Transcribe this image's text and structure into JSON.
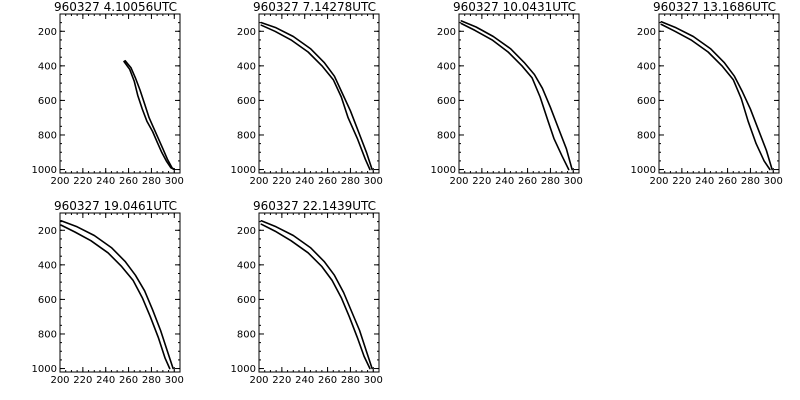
{
  "chart_data": [
    {
      "type": "line",
      "title": "960327   4.10056UTC",
      "xlim": [
        200,
        305
      ],
      "ylim": [
        100,
        1020
      ],
      "y_inverted": true,
      "xticks": [
        200,
        220,
        240,
        260,
        280,
        300
      ],
      "yticks": [
        200,
        400,
        600,
        800,
        1000
      ],
      "series": [
        {
          "x": [
            257,
            262,
            266,
            270,
            274,
            278,
            282,
            286,
            290,
            294,
            298,
            300
          ],
          "y": [
            370,
            410,
            470,
            540,
            620,
            700,
            760,
            820,
            880,
            940,
            990,
            1000
          ]
        },
        {
          "x": [
            256,
            261,
            265,
            268,
            272,
            276,
            281,
            285,
            289,
            293,
            297,
            300
          ],
          "y": [
            375,
            420,
            490,
            570,
            650,
            720,
            780,
            840,
            900,
            950,
            990,
            1000
          ]
        }
      ]
    },
    {
      "type": "line",
      "title": "960327   7.14278UTC",
      "xlim": [
        200,
        305
      ],
      "ylim": [
        100,
        1020
      ],
      "y_inverted": true,
      "xticks": [
        200,
        220,
        240,
        260,
        280,
        300
      ],
      "yticks": [
        200,
        400,
        600,
        800,
        1000
      ],
      "series": [
        {
          "x": [
            202,
            215,
            230,
            245,
            257,
            266,
            273,
            280,
            287,
            294,
            299
          ],
          "y": [
            150,
            180,
            230,
            300,
            380,
            460,
            560,
            660,
            780,
            900,
            1000
          ]
        },
        {
          "x": [
            202,
            214,
            228,
            243,
            255,
            265,
            272,
            278,
            286,
            293,
            297
          ],
          "y": [
            165,
            200,
            250,
            320,
            400,
            480,
            580,
            700,
            820,
            940,
            1000
          ]
        }
      ]
    },
    {
      "type": "line",
      "title": "960327   10.0431UTC",
      "xlim": [
        200,
        305
      ],
      "ylim": [
        100,
        1020
      ],
      "y_inverted": true,
      "xticks": [
        200,
        220,
        240,
        260,
        280,
        300
      ],
      "yticks": [
        200,
        400,
        600,
        800,
        1000
      ],
      "series": [
        {
          "x": [
            202,
            215,
            230,
            245,
            257,
            266,
            273,
            280,
            287,
            294,
            299
          ],
          "y": [
            140,
            175,
            230,
            300,
            380,
            450,
            530,
            640,
            760,
            880,
            1000
          ]
        },
        {
          "x": [
            202,
            214,
            229,
            243,
            255,
            264,
            271,
            278,
            283,
            290,
            296
          ],
          "y": [
            155,
            195,
            250,
            320,
            400,
            470,
            580,
            720,
            820,
            920,
            1000
          ]
        }
      ]
    },
    {
      "type": "line",
      "title": "960327   13.1686UTC",
      "xlim": [
        200,
        305
      ],
      "ylim": [
        100,
        1020
      ],
      "y_inverted": true,
      "xticks": [
        200,
        220,
        240,
        260,
        280,
        300
      ],
      "yticks": [
        200,
        400,
        600,
        800,
        1000
      ],
      "series": [
        {
          "x": [
            202,
            215,
            230,
            245,
            257,
            266,
            273,
            280,
            287,
            294,
            299
          ],
          "y": [
            145,
            180,
            230,
            300,
            380,
            460,
            550,
            650,
            770,
            890,
            1000
          ]
        },
        {
          "x": [
            202,
            214,
            228,
            243,
            255,
            265,
            272,
            278,
            285,
            292,
            297
          ],
          "y": [
            160,
            200,
            250,
            320,
            400,
            480,
            590,
            720,
            850,
            950,
            1000
          ]
        }
      ]
    },
    {
      "type": "line",
      "title": "960327   19.0461UTC",
      "xlim": [
        200,
        305
      ],
      "ylim": [
        100,
        1020
      ],
      "y_inverted": true,
      "xticks": [
        200,
        220,
        240,
        260,
        280,
        300
      ],
      "yticks": [
        200,
        400,
        600,
        800,
        1000
      ],
      "series": [
        {
          "x": [
            201,
            215,
            230,
            245,
            257,
            266,
            274,
            281,
            288,
            294,
            299
          ],
          "y": [
            145,
            180,
            230,
            300,
            380,
            460,
            550,
            660,
            780,
            900,
            1000
          ]
        },
        {
          "x": [
            201,
            213,
            227,
            242,
            254,
            264,
            272,
            279,
            286,
            292,
            296
          ],
          "y": [
            170,
            210,
            260,
            330,
            410,
            490,
            590,
            700,
            820,
            940,
            1000
          ]
        }
      ]
    },
    {
      "type": "line",
      "title": "960327   22.1439UTC",
      "xlim": [
        200,
        305
      ],
      "ylim": [
        100,
        1020
      ],
      "y_inverted": true,
      "xticks": [
        200,
        220,
        240,
        260,
        280,
        300
      ],
      "yticks": [
        200,
        400,
        600,
        800,
        1000
      ],
      "series": [
        {
          "x": [
            202,
            215,
            230,
            245,
            257,
            266,
            274,
            281,
            288,
            294,
            299
          ],
          "y": [
            145,
            180,
            230,
            300,
            380,
            460,
            560,
            670,
            780,
            900,
            1000
          ]
        },
        {
          "x": [
            202,
            214,
            228,
            243,
            255,
            264,
            272,
            279,
            286,
            292,
            297
          ],
          "y": [
            165,
            205,
            260,
            330,
            410,
            490,
            590,
            700,
            820,
            930,
            1000
          ]
        }
      ]
    }
  ]
}
